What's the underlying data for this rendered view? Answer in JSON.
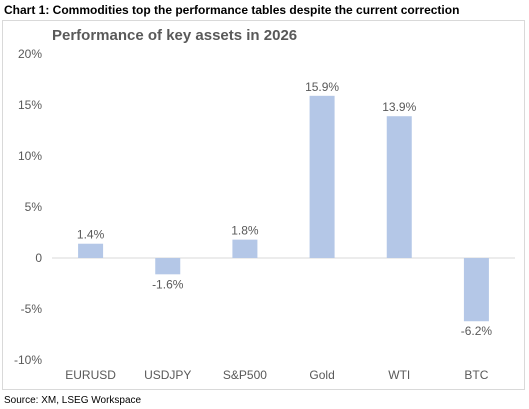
{
  "caption": "Chart 1: Commodities top the performance tables despite the current correction",
  "source": "Source: XM, LSEG Workspace",
  "colors": {
    "bar": "#b4c7e7",
    "axis_text": "#595959",
    "gridline": "#d9d9d9"
  },
  "chart_data": {
    "type": "bar",
    "title": "Performance of key assets in 2026",
    "xlabel": "",
    "ylabel": "",
    "categories": [
      "EURUSD",
      "USDJPY",
      "S&P500",
      "Gold",
      "WTI",
      "BTC"
    ],
    "values": [
      1.4,
      -1.6,
      1.8,
      15.9,
      13.9,
      -6.2
    ],
    "data_labels": [
      "1.4%",
      "-1.6%",
      "1.8%",
      "15.9%",
      "13.9%",
      "-6.2%"
    ],
    "ylim": [
      -10,
      20
    ],
    "yticks": [
      -10,
      -5,
      0,
      5,
      10,
      15,
      20
    ],
    "ytick_labels": [
      "-10%",
      "-5%",
      "0",
      "5%",
      "10%",
      "15%",
      "20%"
    ],
    "grid": false,
    "legend": "none"
  }
}
